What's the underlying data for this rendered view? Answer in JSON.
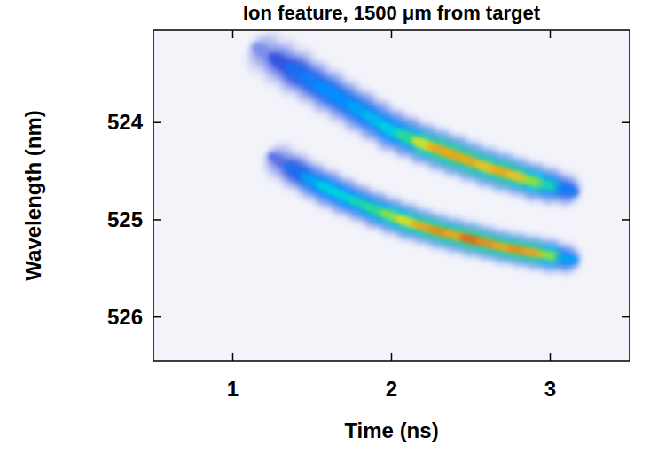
{
  "chart_data": {
    "type": "streak",
    "title": "Ion feature, 1500 μm from target",
    "x_label": "Time (ns)",
    "y_label": "Wavelength (nm)",
    "xlim": [
      0.5,
      3.5
    ],
    "ylim": [
      523.05,
      526.45
    ],
    "xticks": [
      1,
      2,
      3
    ],
    "yticks": [
      524,
      525,
      526
    ],
    "series": [
      {
        "x": [
          1.2,
          1.3,
          1.4,
          1.5,
          1.6,
          1.7,
          1.8,
          1.9,
          2.0,
          2.1,
          2.2,
          2.3,
          2.4,
          2.5,
          2.6,
          2.7,
          2.8,
          2.9,
          3.0,
          3.1
        ],
        "values": [
          523.28,
          523.38,
          523.48,
          523.58,
          523.68,
          523.78,
          523.88,
          523.98,
          524.08,
          524.15,
          524.22,
          524.28,
          524.34,
          524.4,
          524.46,
          524.51,
          524.56,
          524.61,
          524.65,
          524.69
        ],
        "width": [
          0.3,
          0.3,
          0.3,
          0.28,
          0.28,
          0.27,
          0.27,
          0.26,
          0.26,
          0.25,
          0.25,
          0.25,
          0.25,
          0.24,
          0.24,
          0.24,
          0.23,
          0.23,
          0.22,
          0.2
        ],
        "intensity": [
          0.15,
          0.25,
          0.35,
          0.4,
          0.45,
          0.45,
          0.5,
          0.55,
          0.6,
          0.7,
          0.85,
          0.9,
          0.9,
          0.9,
          0.88,
          0.9,
          0.88,
          0.8,
          0.65,
          0.4
        ]
      },
      {
        "x": [
          1.3,
          1.4,
          1.5,
          1.6,
          1.7,
          1.8,
          1.9,
          2.0,
          2.1,
          2.2,
          2.3,
          2.4,
          2.5,
          2.6,
          2.7,
          2.8,
          2.9,
          3.0,
          3.1
        ],
        "values": [
          524.4,
          524.5,
          524.6,
          524.68,
          524.76,
          524.83,
          524.9,
          524.96,
          525.02,
          525.07,
          525.12,
          525.16,
          525.2,
          525.24,
          525.28,
          525.31,
          525.34,
          525.37,
          525.4
        ],
        "width": [
          0.24,
          0.24,
          0.23,
          0.23,
          0.23,
          0.22,
          0.22,
          0.22,
          0.22,
          0.21,
          0.21,
          0.21,
          0.21,
          0.2,
          0.2,
          0.2,
          0.2,
          0.2,
          0.18
        ],
        "intensity": [
          0.2,
          0.35,
          0.5,
          0.6,
          0.6,
          0.65,
          0.7,
          0.8,
          0.85,
          0.9,
          0.92,
          0.9,
          0.95,
          0.92,
          0.9,
          0.92,
          0.9,
          0.8,
          0.5
        ]
      }
    ]
  }
}
